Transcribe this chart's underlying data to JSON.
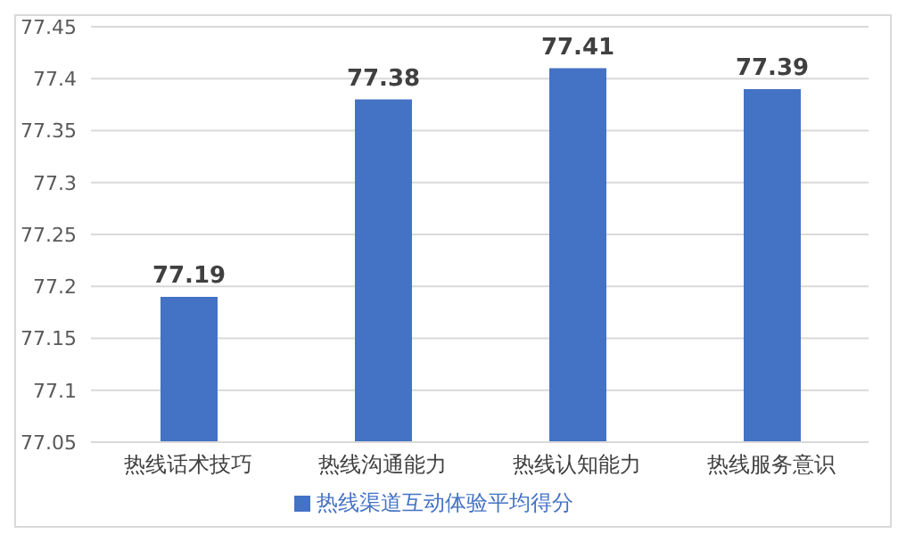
{
  "chart_data": {
    "type": "bar",
    "categories": [
      "热线话术技巧",
      "热线沟通能力",
      "热线认知能力",
      "热线服务意识"
    ],
    "series": [
      {
        "name": "热线渠道互动体验平均得分",
        "color": "#4472c4",
        "values": [
          77.19,
          77.38,
          77.41,
          77.39
        ]
      }
    ],
    "ylim": [
      77.05,
      77.45
    ],
    "yticks": [
      77.05,
      77.1,
      77.15,
      77.2,
      77.25,
      77.3,
      77.35,
      77.4,
      77.45
    ],
    "grid": "y",
    "legend": "bottom",
    "data_labels": true
  }
}
